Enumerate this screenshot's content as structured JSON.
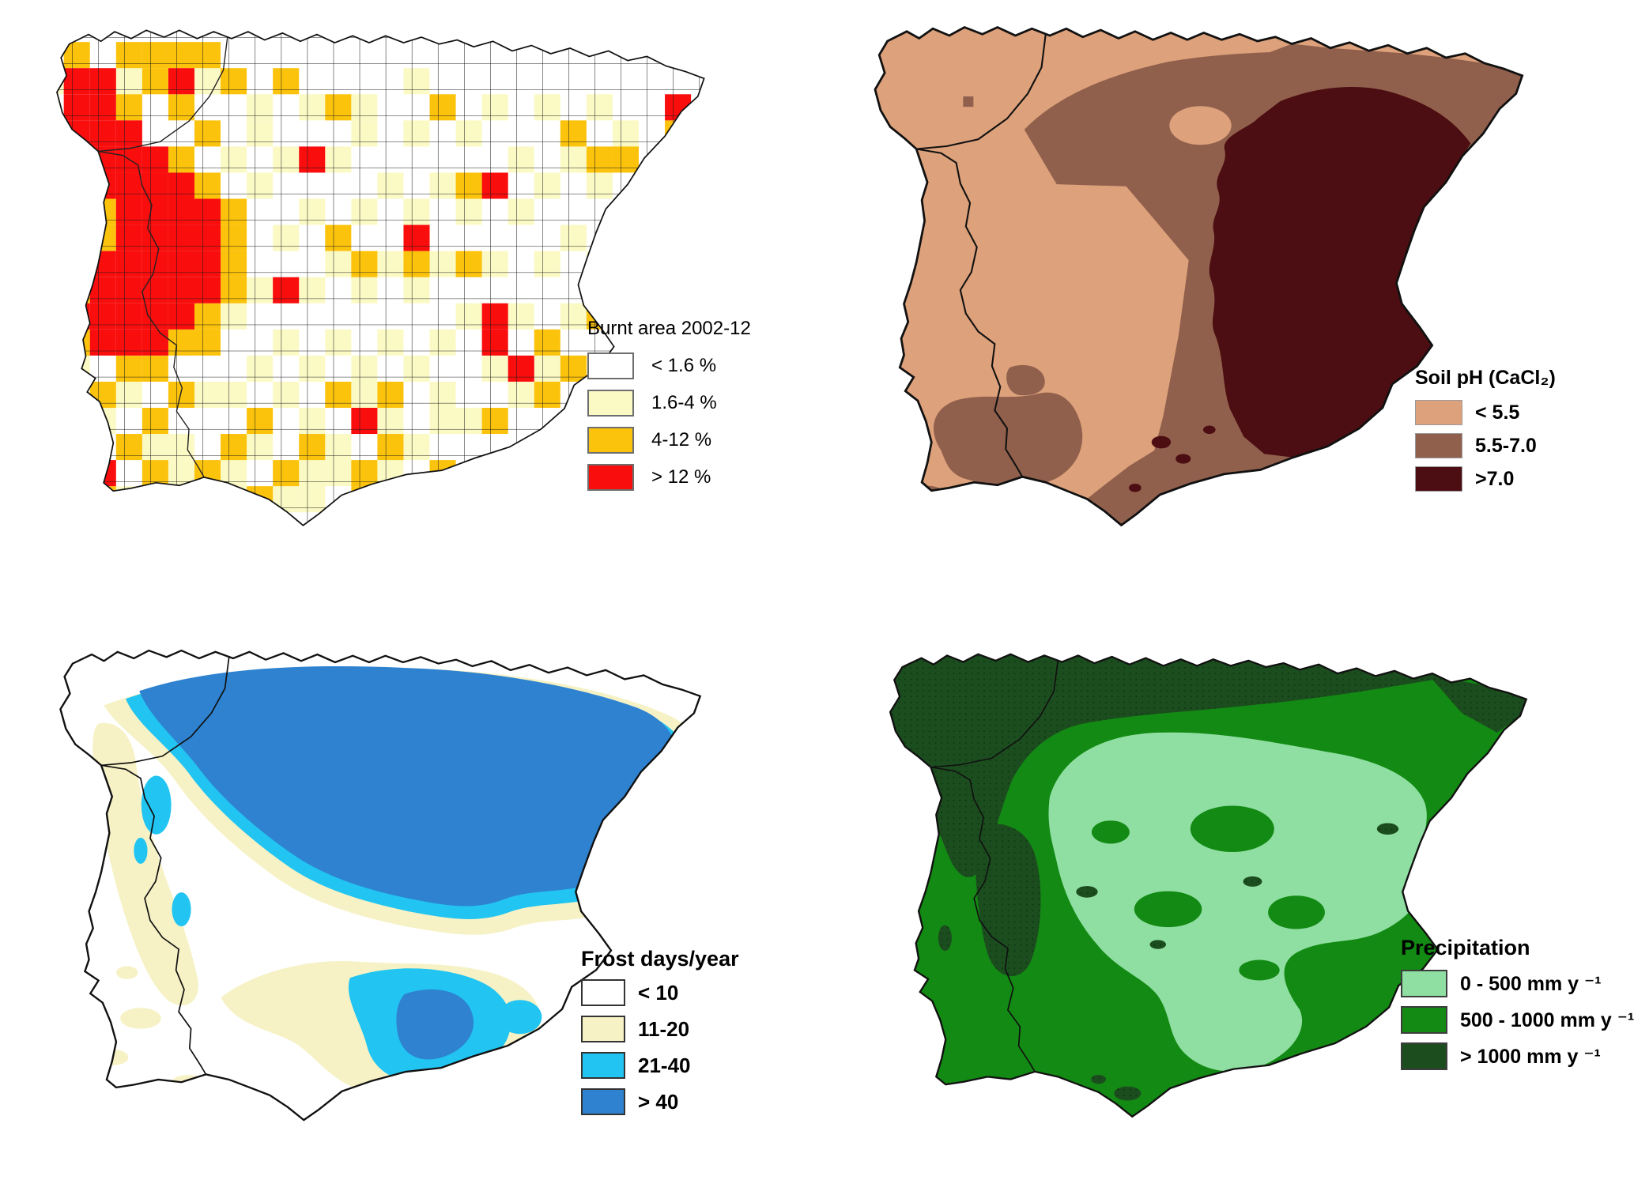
{
  "figure": {
    "description": "Four-panel map figure of the Iberian Peninsula",
    "background": "#ffffff",
    "outline_color": "#111111",
    "border_color": "#1a1a1a",
    "grid_line_color": "#1b1b1b"
  },
  "maps": {
    "burnt_area": {
      "legend_title": "Burnt area 2002-12",
      "classes": [
        {
          "label": "< 1.6 %",
          "color": "#ffffff"
        },
        {
          "label": "1.6-4 %",
          "color": "#fbfac5"
        },
        {
          "label": "4-12 %",
          "color": "#fcc30c"
        },
        {
          "label": "> 12 %",
          "color": "#f90d0d"
        }
      ],
      "grid": {
        "cols": 26,
        "rows": 21,
        "cells_red": [
          [
            2,
            2
          ],
          [
            3,
            2
          ],
          [
            6,
            2
          ],
          [
            2,
            3
          ],
          [
            3,
            3
          ],
          [
            25,
            3
          ],
          [
            2,
            4
          ],
          [
            3,
            4
          ],
          [
            4,
            4
          ],
          [
            2,
            5
          ],
          [
            3,
            5
          ],
          [
            4,
            5
          ],
          [
            5,
            5
          ],
          [
            11,
            5
          ],
          [
            3,
            6
          ],
          [
            4,
            6
          ],
          [
            5,
            6
          ],
          [
            6,
            6
          ],
          [
            18,
            6
          ],
          [
            4,
            7
          ],
          [
            5,
            7
          ],
          [
            6,
            7
          ],
          [
            7,
            7
          ],
          [
            4,
            8
          ],
          [
            5,
            8
          ],
          [
            6,
            8
          ],
          [
            7,
            8
          ],
          [
            15,
            8
          ],
          [
            3,
            9
          ],
          [
            4,
            9
          ],
          [
            5,
            9
          ],
          [
            6,
            9
          ],
          [
            7,
            9
          ],
          [
            3,
            10
          ],
          [
            4,
            10
          ],
          [
            5,
            10
          ],
          [
            6,
            10
          ],
          [
            7,
            10
          ],
          [
            10,
            10
          ],
          [
            2,
            11
          ],
          [
            3,
            11
          ],
          [
            4,
            11
          ],
          [
            5,
            11
          ],
          [
            6,
            11
          ],
          [
            18,
            11
          ],
          [
            3,
            12
          ],
          [
            4,
            12
          ],
          [
            5,
            12
          ],
          [
            18,
            12
          ],
          [
            19,
            13
          ],
          [
            13,
            15
          ],
          [
            2,
            17
          ],
          [
            3,
            17
          ]
        ],
        "cells_orange": [
          [
            2,
            1
          ],
          [
            4,
            1
          ],
          [
            5,
            1
          ],
          [
            6,
            1
          ],
          [
            7,
            1
          ],
          [
            5,
            2
          ],
          [
            8,
            2
          ],
          [
            10,
            2
          ],
          [
            4,
            3
          ],
          [
            6,
            3
          ],
          [
            12,
            3
          ],
          [
            16,
            3
          ],
          [
            7,
            4
          ],
          [
            21,
            4
          ],
          [
            25,
            4
          ],
          [
            6,
            5
          ],
          [
            22,
            5
          ],
          [
            23,
            5
          ],
          [
            2,
            6
          ],
          [
            7,
            6
          ],
          [
            17,
            6
          ],
          [
            24,
            6
          ],
          [
            2,
            7
          ],
          [
            3,
            7
          ],
          [
            8,
            7
          ],
          [
            2,
            8
          ],
          [
            3,
            8
          ],
          [
            8,
            8
          ],
          [
            12,
            8
          ],
          [
            2,
            9
          ],
          [
            8,
            9
          ],
          [
            13,
            9
          ],
          [
            15,
            9
          ],
          [
            17,
            9
          ],
          [
            23,
            9
          ],
          [
            2,
            10
          ],
          [
            8,
            10
          ],
          [
            7,
            11
          ],
          [
            22,
            11
          ],
          [
            2,
            12
          ],
          [
            6,
            12
          ],
          [
            7,
            12
          ],
          [
            20,
            12
          ],
          [
            4,
            13
          ],
          [
            5,
            13
          ],
          [
            21,
            13
          ],
          [
            3,
            14
          ],
          [
            6,
            14
          ],
          [
            12,
            14
          ],
          [
            14,
            14
          ],
          [
            20,
            14
          ],
          [
            2,
            15
          ],
          [
            5,
            15
          ],
          [
            9,
            15
          ],
          [
            18,
            15
          ],
          [
            4,
            16
          ],
          [
            8,
            16
          ],
          [
            11,
            16
          ],
          [
            14,
            16
          ],
          [
            5,
            17
          ],
          [
            7,
            17
          ],
          [
            10,
            17
          ],
          [
            13,
            17
          ],
          [
            16,
            17
          ],
          [
            3,
            18
          ],
          [
            6,
            18
          ],
          [
            9,
            18
          ],
          [
            13,
            18
          ],
          [
            13,
            19
          ],
          [
            10,
            20
          ]
        ],
        "cells_yellow": [
          [
            1,
            2
          ],
          [
            4,
            2
          ],
          [
            7,
            2
          ],
          [
            15,
            2
          ],
          [
            9,
            3
          ],
          [
            11,
            3
          ],
          [
            13,
            3
          ],
          [
            18,
            3
          ],
          [
            20,
            3
          ],
          [
            22,
            3
          ],
          [
            9,
            4
          ],
          [
            13,
            4
          ],
          [
            15,
            4
          ],
          [
            17,
            4
          ],
          [
            23,
            4
          ],
          [
            8,
            5
          ],
          [
            10,
            5
          ],
          [
            12,
            5
          ],
          [
            19,
            5
          ],
          [
            21,
            5
          ],
          [
            25,
            5
          ],
          [
            9,
            6
          ],
          [
            14,
            6
          ],
          [
            16,
            6
          ],
          [
            20,
            6
          ],
          [
            22,
            6
          ],
          [
            25,
            6
          ],
          [
            11,
            7
          ],
          [
            13,
            7
          ],
          [
            15,
            7
          ],
          [
            17,
            7
          ],
          [
            19,
            7
          ],
          [
            24,
            7
          ],
          [
            10,
            8
          ],
          [
            21,
            8
          ],
          [
            23,
            8
          ],
          [
            12,
            9
          ],
          [
            14,
            9
          ],
          [
            16,
            9
          ],
          [
            18,
            9
          ],
          [
            20,
            9
          ],
          [
            22,
            9
          ],
          [
            24,
            9
          ],
          [
            9,
            10
          ],
          [
            11,
            10
          ],
          [
            13,
            10
          ],
          [
            15,
            10
          ],
          [
            8,
            11
          ],
          [
            17,
            11
          ],
          [
            19,
            11
          ],
          [
            21,
            11
          ],
          [
            23,
            11
          ],
          [
            10,
            12
          ],
          [
            12,
            12
          ],
          [
            14,
            12
          ],
          [
            16,
            12
          ],
          [
            23,
            12
          ],
          [
            2,
            13
          ],
          [
            9,
            13
          ],
          [
            11,
            13
          ],
          [
            13,
            13
          ],
          [
            15,
            13
          ],
          [
            18,
            13
          ],
          [
            20,
            13
          ],
          [
            22,
            13
          ],
          [
            4,
            14
          ],
          [
            7,
            14
          ],
          [
            8,
            14
          ],
          [
            10,
            14
          ],
          [
            13,
            14
          ],
          [
            16,
            14
          ],
          [
            19,
            14
          ],
          [
            22,
            14
          ],
          [
            3,
            15
          ],
          [
            11,
            15
          ],
          [
            14,
            15
          ],
          [
            16,
            15
          ],
          [
            17,
            15
          ],
          [
            5,
            16
          ],
          [
            6,
            16
          ],
          [
            9,
            16
          ],
          [
            12,
            16
          ],
          [
            15,
            16
          ],
          [
            6,
            17
          ],
          [
            8,
            17
          ],
          [
            11,
            17
          ],
          [
            12,
            17
          ],
          [
            14,
            17
          ],
          [
            4,
            18
          ],
          [
            5,
            18
          ],
          [
            7,
            18
          ],
          [
            8,
            18
          ],
          [
            10,
            18
          ],
          [
            11,
            18
          ],
          [
            14,
            18
          ],
          [
            9,
            19
          ],
          [
            12,
            19
          ]
        ]
      }
    },
    "soil_ph": {
      "legend_title": "Soil pH (CaCl₂)",
      "classes": [
        {
          "label": "< 5.5",
          "color": "#dda17b"
        },
        {
          "label": "5.5-7.0",
          "color": "#91604d"
        },
        {
          "label": ">7.0",
          "color": "#4c0e12"
        }
      ]
    },
    "frost_days": {
      "legend_title": "Frost days/year",
      "classes": [
        {
          "label": "< 10",
          "color": "#ffffff"
        },
        {
          "label": "11-20",
          "color": "#f6f2c5"
        },
        {
          "label": "21-40",
          "color": "#22c4f2"
        },
        {
          "label": "> 40",
          "color": "#2e82d0"
        }
      ]
    },
    "precipitation": {
      "legend_title": "Precipitation",
      "classes": [
        {
          "label": "0 - 500 mm y ⁻¹",
          "color": "#8fdfa2"
        },
        {
          "label": "500 - 1000 mm y ⁻¹",
          "color": "#138a13"
        },
        {
          "label": "> 1000 mm y ⁻¹",
          "color": "#1c4d1f"
        }
      ]
    }
  }
}
